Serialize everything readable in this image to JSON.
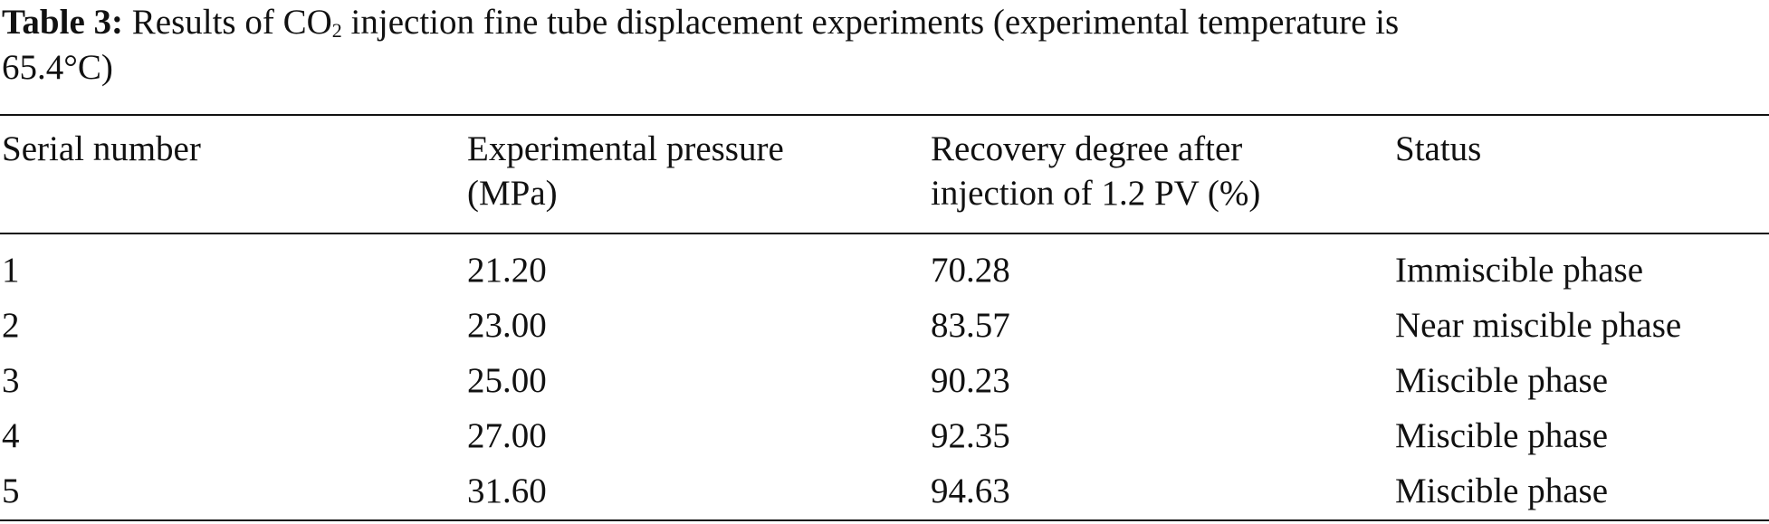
{
  "caption": {
    "label": "Table 3:",
    "text_before": " Results of CO",
    "subscript": "2",
    "text_after_line1": " injection fine tube displacement experiments (experimental temperature is",
    "text_line2": "65.4°C)"
  },
  "table": {
    "headers": [
      {
        "line1": "Serial number",
        "line2": ""
      },
      {
        "line1": "Experimental pressure",
        "line2": "(MPa)"
      },
      {
        "line1": "Recovery degree after",
        "line2": "injection of 1.2 PV (%)"
      },
      {
        "line1": "Status",
        "line2": ""
      }
    ],
    "rows": [
      [
        "1",
        "21.20",
        "70.28",
        "Immiscible phase"
      ],
      [
        "2",
        "23.00",
        "83.57",
        "Near miscible phase"
      ],
      [
        "3",
        "25.00",
        "90.23",
        "Miscible phase"
      ],
      [
        "4",
        "27.00",
        "92.35",
        "Miscible phase"
      ],
      [
        "5",
        "31.60",
        "94.63",
        "Miscible phase"
      ]
    ]
  }
}
